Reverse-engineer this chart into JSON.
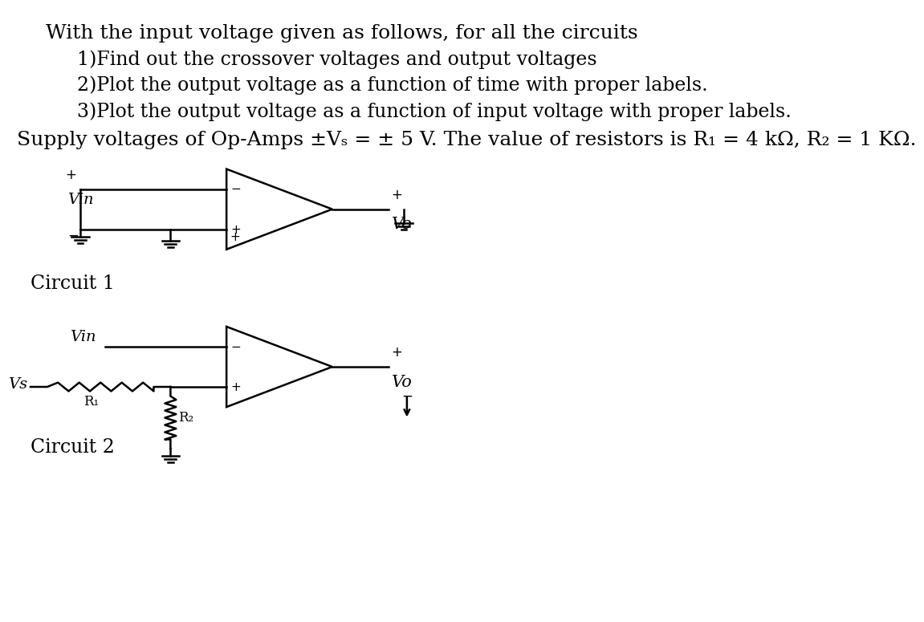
{
  "bg_color": "#ffffff",
  "text_color": "#000000",
  "line_color": "#000000",
  "header_line1": "With the input voltage given as follows, for all the circuits",
  "header_line2": "1)Find out the crossover voltages and output voltages",
  "header_line3": "2)Plot the output voltage as a function of time with proper labels.",
  "header_line4": "3)Plot the output voltage as a function of input voltage with proper labels.",
  "supply_line": "Supply voltages of Op-Amps ±Vₛ = ± 5 V. The value of resistors is R₁ = 4 kΩ, R₂ = 1 KΩ.",
  "circuit1_label": "Circuit 1",
  "circuit2_label": "Circuit 2",
  "font_size_header": 18,
  "font_size_items": 17,
  "font_size_supply": 18,
  "font_size_circuit": 17,
  "fig_width": 12.0,
  "fig_height": 9.81,
  "xlim": [
    0,
    12
  ],
  "ylim": [
    0,
    9.81
  ]
}
